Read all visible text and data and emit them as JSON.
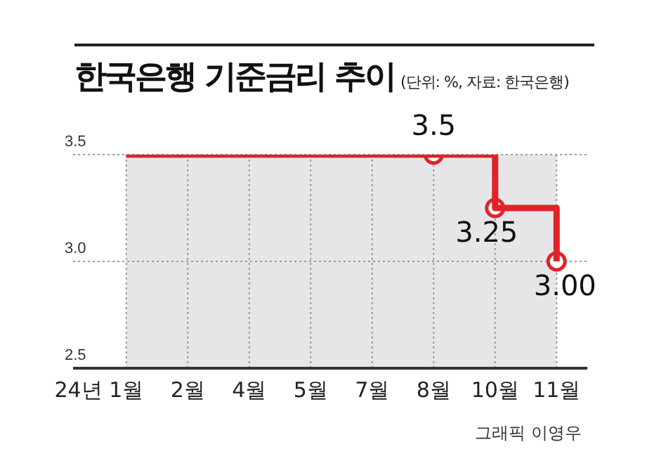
{
  "chart_data": {
    "type": "step",
    "title": "한국은행 기준금리 추이",
    "subtitle": "(단위: %, 자료: 한국은행)",
    "annotations": [
      "그래픽 이영우"
    ],
    "categories": [
      "24년 1월",
      "2월",
      "4월",
      "5월",
      "7월",
      "8월",
      "10월",
      "11월"
    ],
    "series": [
      {
        "color": "#e0232b",
        "values": [
          3.5,
          3.5,
          3.5,
          3.5,
          3.5,
          3.5,
          3.25,
          3.0
        ]
      },
      {
        "type": "scatter",
        "color": "#e0232b",
        "x": [
          "8월",
          "10월",
          "11월"
        ],
        "values": [
          3.5,
          3.25,
          3.0
        ],
        "marker": "circle",
        "value_labels": [
          "3.5",
          "3.25",
          "3.00"
        ]
      }
    ],
    "ylim": [
      2.5,
      3.5
    ],
    "yticks": [
      {
        "value": 2.5,
        "label": "2.5"
      },
      {
        "value": 3,
        "label": "3.0"
      },
      {
        "value": 3.5,
        "label": "3.5"
      }
    ],
    "grid": true,
    "legend": false,
    "bands": [
      {
        "axis": "x",
        "from": "24년 1월",
        "to": "11월",
        "color": "#e6e6e9"
      }
    ]
  }
}
